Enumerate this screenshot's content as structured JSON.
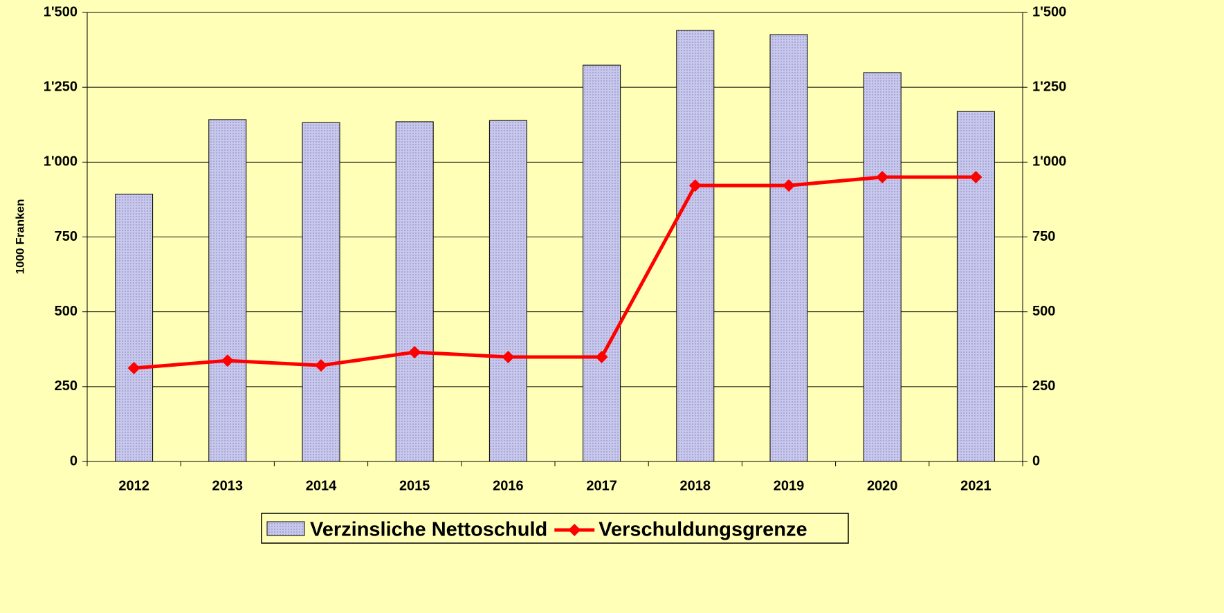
{
  "chart_data": {
    "type": "bar_line",
    "y_label": "1000 Franken",
    "categories": [
      "2012",
      "2013",
      "2014",
      "2015",
      "2016",
      "2017",
      "2018",
      "2019",
      "2020",
      "2021"
    ],
    "series": [
      {
        "name": "Verzinsliche Nettoschuld",
        "type": "bar",
        "color": "#bebee6",
        "values": [
          893,
          1142,
          1132,
          1135,
          1139,
          1324,
          1440,
          1426,
          1299,
          1169
        ]
      },
      {
        "name": "Verschuldungsgrenze",
        "type": "line",
        "axis": "y2",
        "color": "#ff0000",
        "values": [
          312,
          337,
          321,
          365,
          349,
          349,
          922,
          922,
          950,
          950
        ]
      }
    ],
    "ylim": [
      0,
      1500
    ],
    "yticks": [
      0,
      250,
      500,
      750,
      {
        "value": 1000,
        "label": "1'000"
      },
      {
        "value": 1250,
        "label": "1'250"
      },
      {
        "value": 1500,
        "label": "1'500"
      }
    ],
    "y2lim": [
      0,
      1500
    ],
    "y2ticks": [
      0,
      250,
      500,
      750,
      {
        "value": 1000,
        "label": "1'000"
      },
      {
        "value": 1250,
        "label": "1'250"
      },
      {
        "value": 1500,
        "label": "1'500"
      }
    ],
    "grid": true,
    "legend": "bottom"
  }
}
